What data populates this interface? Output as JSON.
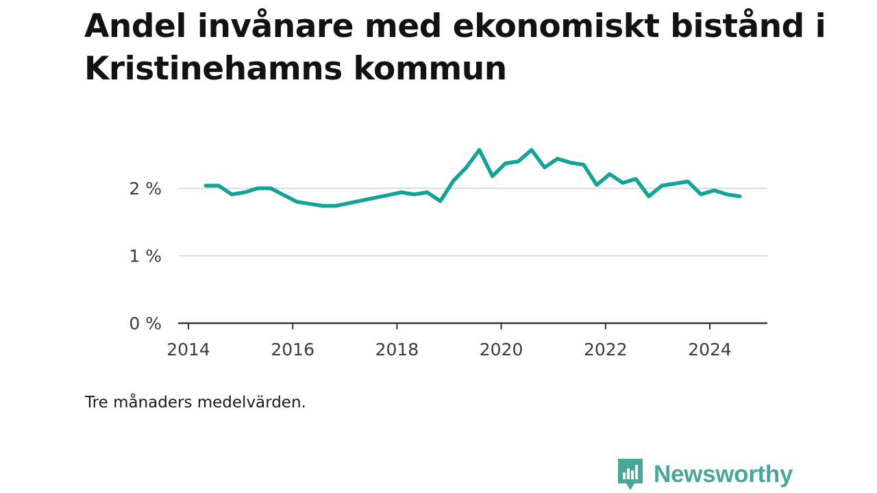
{
  "header": {
    "title": "Andel invånare med ekonomiskt bistånd i Kristinehamns kommun"
  },
  "footer": {
    "note": "Tre månaders medelvärden.",
    "brand": "Newsworthy"
  },
  "colors": {
    "line": "#14a396",
    "grid": "#dddddd",
    "axis": "#333333",
    "brand": "#4aa69a"
  },
  "chart_data": {
    "type": "line",
    "y_unit": "%",
    "ylim": [
      0,
      2.6
    ],
    "yticks": [
      0,
      1,
      2
    ],
    "ytick_labels": [
      "0 %",
      "1 %",
      "2 %"
    ],
    "xlim": [
      2014,
      2025.15
    ],
    "xticks": [
      2014,
      2016,
      2018,
      2020,
      2022,
      2024
    ],
    "xtick_labels": [
      "2014",
      "2016",
      "2018",
      "2020",
      "2022",
      "2024"
    ],
    "grid": true,
    "series": [
      {
        "x": [
          2014.33,
          2014.58,
          2014.83,
          2015.08,
          2015.33,
          2015.58,
          2015.83,
          2016.08,
          2016.33,
          2016.58,
          2016.83,
          2017.08,
          2017.33,
          2017.58,
          2017.83,
          2018.08,
          2018.33,
          2018.58,
          2018.83,
          2019.08,
          2019.33,
          2019.58,
          2019.83,
          2020.08,
          2020.33,
          2020.58,
          2020.83,
          2021.08,
          2021.33,
          2021.58,
          2021.83,
          2022.08,
          2022.33,
          2022.58,
          2022.83,
          2023.08,
          2023.33,
          2023.58,
          2023.83,
          2024.08,
          2024.33,
          2024.58
        ],
        "y": [
          2.04,
          2.04,
          1.91,
          1.94,
          2.0,
          2.0,
          1.9,
          1.8,
          1.77,
          1.74,
          1.74,
          1.78,
          1.82,
          1.86,
          1.9,
          1.94,
          1.91,
          1.94,
          1.81,
          2.11,
          2.31,
          2.57,
          2.18,
          2.37,
          2.4,
          2.57,
          2.31,
          2.44,
          2.38,
          2.35,
          2.05,
          2.21,
          2.08,
          2.14,
          1.88,
          2.04,
          2.07,
          2.1,
          1.91,
          1.97,
          1.91,
          1.88
        ]
      }
    ]
  }
}
